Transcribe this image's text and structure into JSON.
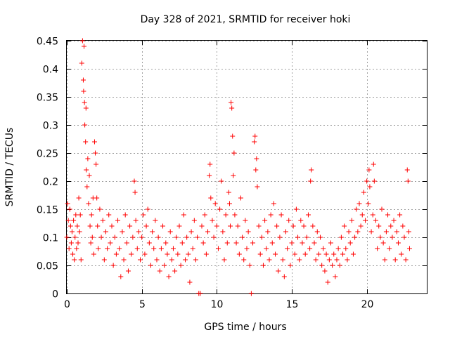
{
  "chart_data": {
    "type": "scatter",
    "title": "Day 328 of 2021, SRMTID for receiver hoki",
    "xlabel": "GPS time / hours",
    "ylabel": "SRMTID / TECUs",
    "xlim": [
      0,
      24
    ],
    "ylim": [
      0,
      0.45
    ],
    "x_ticks": [
      0,
      5,
      10,
      15,
      20
    ],
    "x_tick_labels": [
      "0",
      "5",
      "10",
      "15",
      "20"
    ],
    "y_ticks": [
      0,
      0.05,
      0.1,
      0.15,
      0.2,
      0.25,
      0.3,
      0.35,
      0.4,
      0.45
    ],
    "y_tick_labels": [
      "0",
      "0.05",
      "0.1",
      "0.15",
      "0.2",
      "0.25",
      "0.3",
      "0.35",
      "0.4",
      "0.45"
    ],
    "grid": true,
    "marker": "+",
    "series": [
      {
        "name": "SRMTID",
        "color": "#ff0000",
        "points": [
          [
            0.0,
            0.1
          ],
          [
            0.05,
            0.16
          ],
          [
            0.1,
            0.13
          ],
          [
            0.15,
            0.08
          ],
          [
            0.2,
            0.15
          ],
          [
            0.25,
            0.12
          ],
          [
            0.3,
            0.09
          ],
          [
            0.35,
            0.11
          ],
          [
            0.4,
            0.07
          ],
          [
            0.45,
            0.13
          ],
          [
            0.5,
            0.06
          ],
          [
            0.55,
            0.1
          ],
          [
            0.6,
            0.14
          ],
          [
            0.65,
            0.08
          ],
          [
            0.7,
            0.12
          ],
          [
            0.75,
            0.09
          ],
          [
            0.8,
            0.17
          ],
          [
            0.85,
            0.11
          ],
          [
            0.9,
            0.14
          ],
          [
            0.95,
            0.06
          ],
          [
            1.0,
            0.41
          ],
          [
            1.05,
            0.45
          ],
          [
            1.1,
            0.38
          ],
          [
            1.12,
            0.36
          ],
          [
            1.15,
            0.44
          ],
          [
            1.18,
            0.34
          ],
          [
            1.2,
            0.3
          ],
          [
            1.25,
            0.27
          ],
          [
            1.28,
            0.33
          ],
          [
            1.3,
            0.22
          ],
          [
            1.35,
            0.19
          ],
          [
            1.4,
            0.24
          ],
          [
            1.45,
            0.16
          ],
          [
            1.5,
            0.21
          ],
          [
            1.55,
            0.12
          ],
          [
            1.6,
            0.09
          ],
          [
            1.65,
            0.14
          ],
          [
            1.7,
            0.1
          ],
          [
            1.75,
            0.17
          ],
          [
            1.8,
            0.07
          ],
          [
            1.85,
            0.27
          ],
          [
            1.9,
            0.25
          ],
          [
            1.95,
            0.23
          ],
          [
            2.0,
            0.17
          ],
          [
            2.05,
            0.12
          ],
          [
            2.1,
            0.08
          ],
          [
            2.2,
            0.15
          ],
          [
            2.3,
            0.1
          ],
          [
            2.4,
            0.13
          ],
          [
            2.5,
            0.06
          ],
          [
            2.6,
            0.11
          ],
          [
            2.7,
            0.08
          ],
          [
            2.8,
            0.14
          ],
          [
            2.9,
            0.09
          ],
          [
            3.0,
            0.12
          ],
          [
            3.1,
            0.05
          ],
          [
            3.2,
            0.1
          ],
          [
            3.3,
            0.07
          ],
          [
            3.4,
            0.13
          ],
          [
            3.5,
            0.08
          ],
          [
            3.6,
            0.03
          ],
          [
            3.7,
            0.11
          ],
          [
            3.8,
            0.06
          ],
          [
            3.9,
            0.14
          ],
          [
            4.0,
            0.09
          ],
          [
            4.1,
            0.04
          ],
          [
            4.2,
            0.12
          ],
          [
            4.3,
            0.07
          ],
          [
            4.4,
            0.1
          ],
          [
            4.5,
            0.2
          ],
          [
            4.55,
            0.18
          ],
          [
            4.6,
            0.13
          ],
          [
            4.7,
            0.08
          ],
          [
            4.8,
            0.11
          ],
          [
            4.9,
            0.06
          ],
          [
            5.0,
            0.1
          ],
          [
            5.1,
            0.14
          ],
          [
            5.2,
            0.07
          ],
          [
            5.3,
            0.12
          ],
          [
            5.4,
            0.15
          ],
          [
            5.5,
            0.09
          ],
          [
            5.6,
            0.05
          ],
          [
            5.7,
            0.11
          ],
          [
            5.8,
            0.08
          ],
          [
            5.9,
            0.13
          ],
          [
            6.0,
            0.06
          ],
          [
            6.1,
            0.1
          ],
          [
            6.2,
            0.04
          ],
          [
            6.3,
            0.08
          ],
          [
            6.4,
            0.12
          ],
          [
            6.5,
            0.05
          ],
          [
            6.6,
            0.09
          ],
          [
            6.7,
            0.07
          ],
          [
            6.8,
            0.03
          ],
          [
            6.9,
            0.11
          ],
          [
            7.0,
            0.06
          ],
          [
            7.1,
            0.08
          ],
          [
            7.2,
            0.04
          ],
          [
            7.3,
            0.1
          ],
          [
            7.4,
            0.07
          ],
          [
            7.5,
            0.12
          ],
          [
            7.6,
            0.05
          ],
          [
            7.7,
            0.09
          ],
          [
            7.8,
            0.14
          ],
          [
            7.9,
            0.06
          ],
          [
            8.0,
            0.1
          ],
          [
            8.1,
            0.07
          ],
          [
            8.2,
            0.02
          ],
          [
            8.3,
            0.11
          ],
          [
            8.4,
            0.08
          ],
          [
            8.5,
            0.13
          ],
          [
            8.6,
            0.06
          ],
          [
            8.7,
            0.1
          ],
          [
            8.8,
            0.0
          ],
          [
            8.9,
            0.0
          ],
          [
            9.0,
            0.12
          ],
          [
            9.1,
            0.09
          ],
          [
            9.2,
            0.14
          ],
          [
            9.3,
            0.07
          ],
          [
            9.4,
            0.11
          ],
          [
            9.5,
            0.21
          ],
          [
            9.55,
            0.23
          ],
          [
            9.6,
            0.17
          ],
          [
            9.7,
            0.13
          ],
          [
            9.8,
            0.1
          ],
          [
            9.9,
            0.16
          ],
          [
            10.0,
            0.12
          ],
          [
            10.1,
            0.08
          ],
          [
            10.2,
            0.15
          ],
          [
            10.3,
            0.2
          ],
          [
            10.4,
            0.11
          ],
          [
            10.5,
            0.06
          ],
          [
            10.6,
            0.14
          ],
          [
            10.7,
            0.09
          ],
          [
            10.8,
            0.18
          ],
          [
            10.85,
            0.16
          ],
          [
            10.9,
            0.12
          ],
          [
            10.95,
            0.34
          ],
          [
            11.0,
            0.33
          ],
          [
            11.05,
            0.28
          ],
          [
            11.1,
            0.21
          ],
          [
            11.15,
            0.25
          ],
          [
            11.2,
            0.14
          ],
          [
            11.3,
            0.09
          ],
          [
            11.4,
            0.12
          ],
          [
            11.5,
            0.07
          ],
          [
            11.6,
            0.17
          ],
          [
            11.7,
            0.1
          ],
          [
            11.8,
            0.06
          ],
          [
            11.9,
            0.13
          ],
          [
            12.0,
            0.08
          ],
          [
            12.1,
            0.11
          ],
          [
            12.2,
            0.05
          ],
          [
            12.3,
            0.0
          ],
          [
            12.4,
            0.09
          ],
          [
            12.5,
            0.27
          ],
          [
            12.55,
            0.28
          ],
          [
            12.6,
            0.22
          ],
          [
            12.65,
            0.24
          ],
          [
            12.7,
            0.19
          ],
          [
            12.8,
            0.12
          ],
          [
            12.9,
            0.07
          ],
          [
            13.0,
            0.1
          ],
          [
            13.1,
            0.05
          ],
          [
            13.2,
            0.13
          ],
          [
            13.3,
            0.08
          ],
          [
            13.4,
            0.11
          ],
          [
            13.5,
            0.06
          ],
          [
            13.6,
            0.14
          ],
          [
            13.7,
            0.09
          ],
          [
            13.8,
            0.16
          ],
          [
            13.9,
            0.07
          ],
          [
            14.0,
            0.12
          ],
          [
            14.1,
            0.04
          ],
          [
            14.2,
            0.1
          ],
          [
            14.3,
            0.14
          ],
          [
            14.4,
            0.06
          ],
          [
            14.5,
            0.03
          ],
          [
            14.6,
            0.11
          ],
          [
            14.7,
            0.08
          ],
          [
            14.8,
            0.13
          ],
          [
            14.9,
            0.05
          ],
          [
            15.0,
            0.09
          ],
          [
            15.1,
            0.12
          ],
          [
            15.2,
            0.07
          ],
          [
            15.3,
            0.15
          ],
          [
            15.4,
            0.1
          ],
          [
            15.5,
            0.06
          ],
          [
            15.6,
            0.13
          ],
          [
            15.7,
            0.09
          ],
          [
            15.8,
            0.12
          ],
          [
            15.9,
            0.07
          ],
          [
            16.0,
            0.1
          ],
          [
            16.1,
            0.14
          ],
          [
            16.2,
            0.08
          ],
          [
            16.25,
            0.2
          ],
          [
            16.3,
            0.22
          ],
          [
            16.4,
            0.12
          ],
          [
            16.5,
            0.09
          ],
          [
            16.6,
            0.06
          ],
          [
            16.7,
            0.11
          ],
          [
            16.8,
            0.07
          ],
          [
            16.9,
            0.1
          ],
          [
            17.0,
            0.05
          ],
          [
            17.1,
            0.08
          ],
          [
            17.2,
            0.04
          ],
          [
            17.3,
            0.07
          ],
          [
            17.4,
            0.02
          ],
          [
            17.5,
            0.06
          ],
          [
            17.6,
            0.09
          ],
          [
            17.7,
            0.05
          ],
          [
            17.8,
            0.07
          ],
          [
            17.9,
            0.03
          ],
          [
            18.0,
            0.06
          ],
          [
            18.1,
            0.08
          ],
          [
            18.2,
            0.05
          ],
          [
            18.3,
            0.1
          ],
          [
            18.4,
            0.07
          ],
          [
            18.5,
            0.12
          ],
          [
            18.6,
            0.08
          ],
          [
            18.7,
            0.06
          ],
          [
            18.8,
            0.11
          ],
          [
            18.9,
            0.09
          ],
          [
            19.0,
            0.13
          ],
          [
            19.1,
            0.07
          ],
          [
            19.2,
            0.1
          ],
          [
            19.3,
            0.15
          ],
          [
            19.4,
            0.11
          ],
          [
            19.5,
            0.16
          ],
          [
            19.6,
            0.12
          ],
          [
            19.7,
            0.14
          ],
          [
            19.8,
            0.18
          ],
          [
            19.9,
            0.13
          ],
          [
            20.0,
            0.2
          ],
          [
            20.1,
            0.16
          ],
          [
            20.15,
            0.22
          ],
          [
            20.2,
            0.19
          ],
          [
            20.3,
            0.11
          ],
          [
            20.4,
            0.14
          ],
          [
            20.45,
            0.23
          ],
          [
            20.5,
            0.2
          ],
          [
            20.6,
            0.13
          ],
          [
            20.7,
            0.08
          ],
          [
            20.8,
            0.12
          ],
          [
            20.9,
            0.1
          ],
          [
            21.0,
            0.15
          ],
          [
            21.1,
            0.09
          ],
          [
            21.2,
            0.06
          ],
          [
            21.3,
            0.11
          ],
          [
            21.4,
            0.14
          ],
          [
            21.5,
            0.08
          ],
          [
            21.6,
            0.12
          ],
          [
            21.7,
            0.1
          ],
          [
            21.8,
            0.13
          ],
          [
            21.9,
            0.06
          ],
          [
            22.0,
            0.11
          ],
          [
            22.1,
            0.09
          ],
          [
            22.2,
            0.14
          ],
          [
            22.3,
            0.07
          ],
          [
            22.4,
            0.12
          ],
          [
            22.5,
            0.1
          ],
          [
            22.6,
            0.06
          ],
          [
            22.7,
            0.22
          ],
          [
            22.75,
            0.2
          ],
          [
            22.8,
            0.11
          ],
          [
            22.85,
            0.08
          ]
        ]
      }
    ]
  }
}
